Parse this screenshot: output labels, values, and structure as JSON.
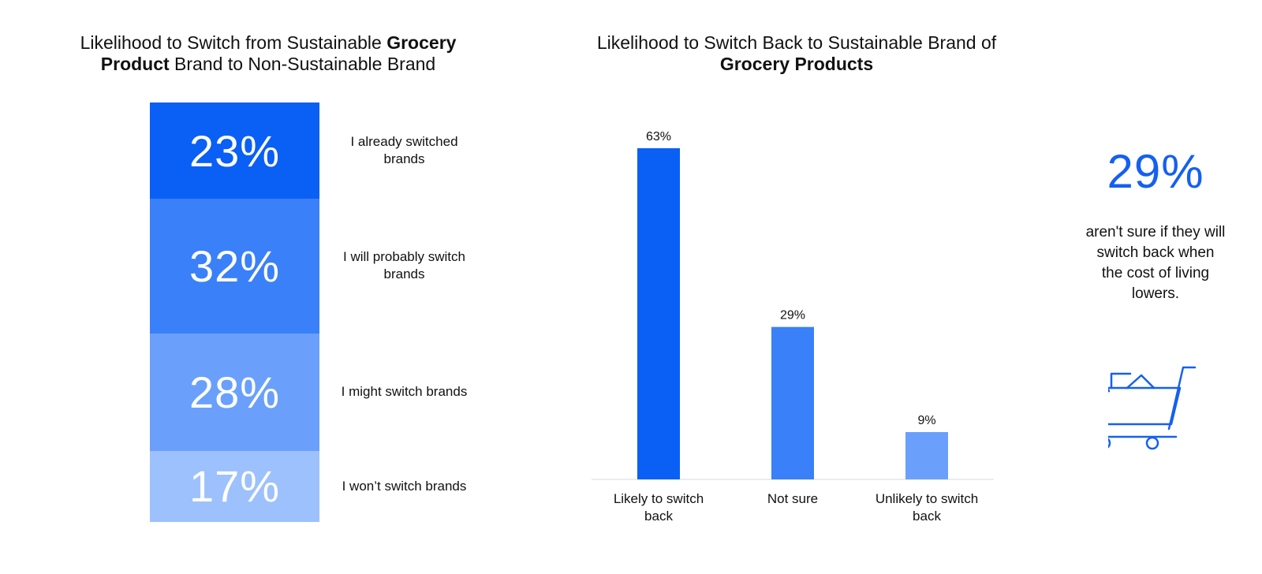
{
  "left_chart": {
    "title_parts": [
      {
        "text": "Likelihood to Switch from Sustainable ",
        "bold": false
      },
      {
        "text": "Grocery",
        "bold": true
      },
      {
        "text": " ",
        "bold": false
      },
      {
        "text": "Product",
        "bold": true
      },
      {
        "text": " Brand to Non-Sustainable Brand",
        "bold": false
      }
    ]
  },
  "right_chart": {
    "title_parts": [
      {
        "text": "Likelihood to Switch Back to Sustainable Brand of ",
        "bold": false
      },
      {
        "text": "Grocery Products",
        "bold": true
      }
    ]
  },
  "callout": {
    "value": "29%",
    "text": "aren't sure if they will switch back when the cost of living lowers.",
    "icon": "shopping-cart-icon",
    "color": "#1560f0"
  },
  "chart_data": [
    {
      "type": "bar",
      "stacked": true,
      "title": "Likelihood to Switch from Sustainable Grocery Product Brand to Non-Sustainable Brand",
      "categories": [
        "I already switched brands",
        "I will probably switch brands",
        "I might switch brands",
        "I won’t switch brands"
      ],
      "values": [
        23,
        32,
        28,
        17
      ],
      "value_labels": [
        "23%",
        "32%",
        "28%",
        "17%"
      ],
      "colors": [
        "#0a5ff5",
        "#3a80f8",
        "#6aa0fb",
        "#9cc1fd"
      ]
    },
    {
      "type": "bar",
      "title": "Likelihood to Switch Back to Sustainable Brand of Grocery Products",
      "categories": [
        "Likely to switch back",
        "Not sure",
        "Unlikely to switch back"
      ],
      "values": [
        63,
        29,
        9
      ],
      "value_labels": [
        "63%",
        "29%",
        "9%"
      ],
      "colors": [
        "#0a5ff5",
        "#3a80f8",
        "#6aa0fb"
      ],
      "ylim": [
        0,
        66
      ],
      "grid": false
    }
  ]
}
